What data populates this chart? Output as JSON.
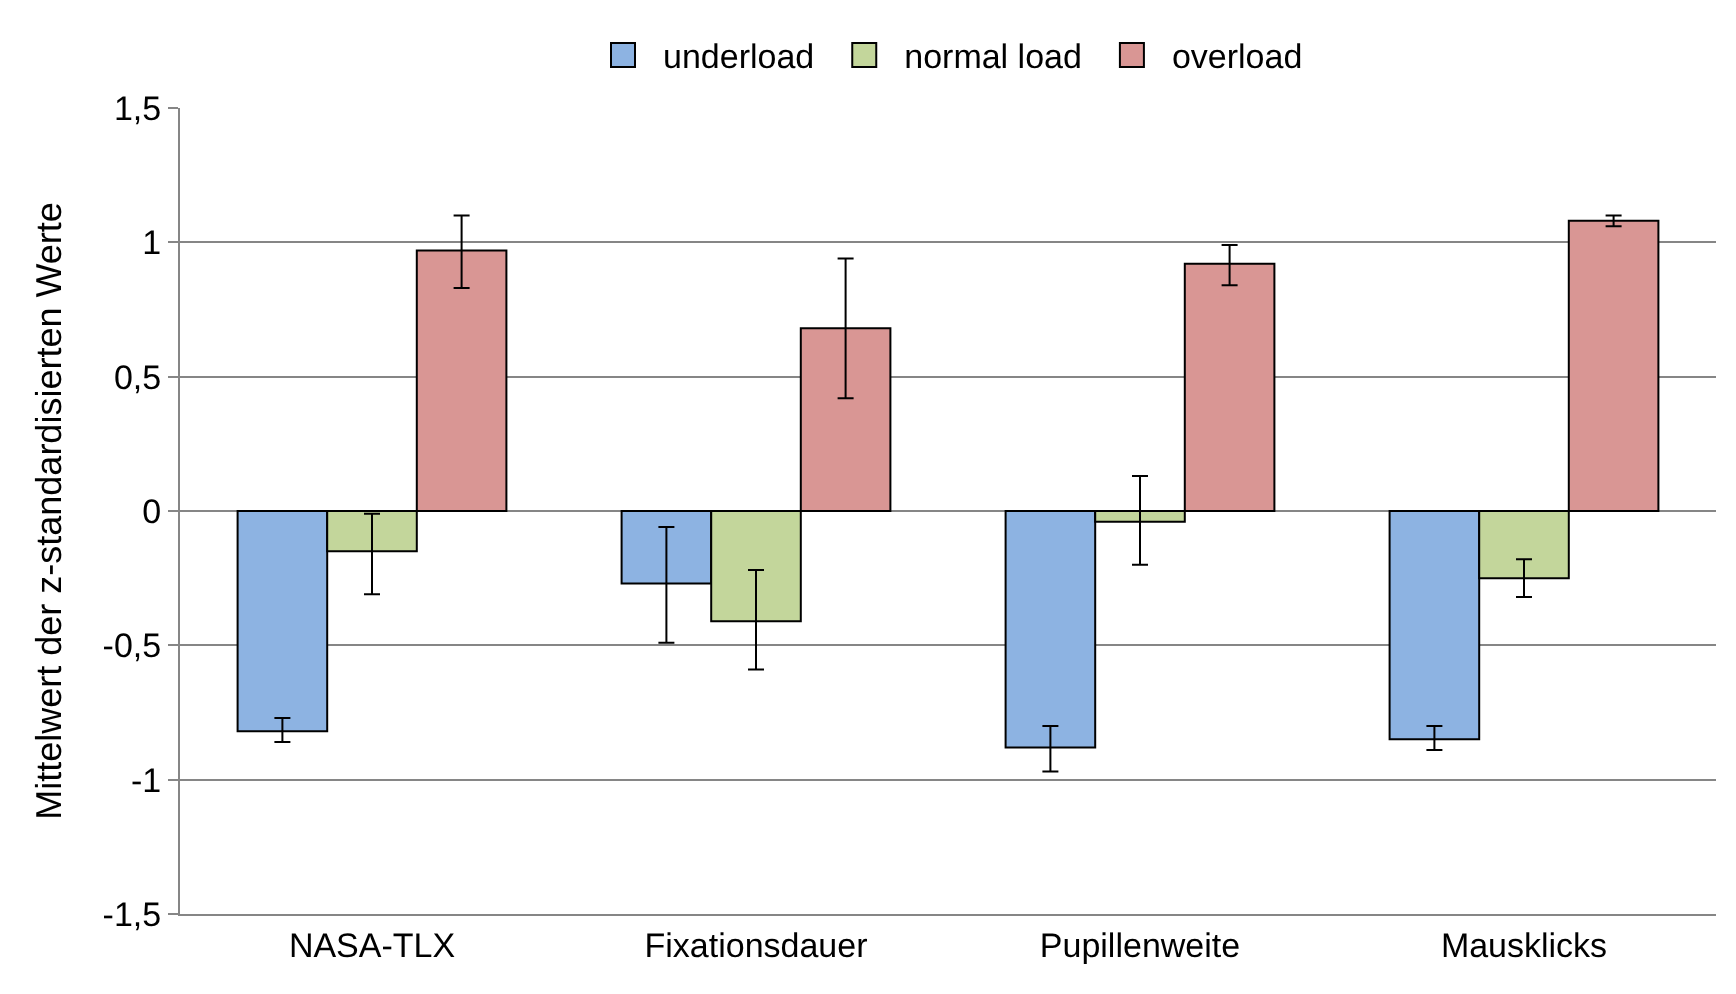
{
  "chart_data": {
    "type": "bar",
    "ylabel": "Mittelwert der z-standardisierten Werte",
    "categories": [
      "NASA-TLX",
      "Fixationsdauer",
      "Pupillenweite",
      "Mausklicks"
    ],
    "series": [
      {
        "name": "underload",
        "color": "#8db3e2",
        "values": [
          -0.82,
          -0.27,
          -0.88,
          -0.85
        ],
        "errors": [
          [
            -0.86,
            -0.77
          ],
          [
            -0.49,
            -0.06
          ],
          [
            -0.97,
            -0.8
          ],
          [
            -0.89,
            -0.8
          ]
        ]
      },
      {
        "name": "normal load",
        "color": "#c3d69b",
        "values": [
          -0.15,
          -0.41,
          -0.04,
          -0.25
        ],
        "errors": [
          [
            -0.31,
            -0.01
          ],
          [
            -0.59,
            -0.22
          ],
          [
            -0.2,
            0.13
          ],
          [
            -0.32,
            -0.18
          ]
        ]
      },
      {
        "name": "overload",
        "color": "#d99694",
        "values": [
          0.97,
          0.68,
          0.92,
          1.08
        ],
        "errors": [
          [
            0.83,
            1.1
          ],
          [
            0.42,
            0.94
          ],
          [
            0.84,
            0.99
          ],
          [
            1.06,
            1.1
          ]
        ]
      }
    ],
    "ylim": [
      -1.5,
      1.5
    ],
    "yticks": [
      {
        "value": -1.5,
        "label": "-1,5"
      },
      -1,
      {
        "value": -0.5,
        "label": "-0,5"
      },
      0,
      {
        "value": 0.5,
        "label": "0,5"
      },
      1,
      {
        "value": 1.5,
        "label": "1,5"
      }
    ],
    "grid": "y",
    "legend": "top"
  }
}
